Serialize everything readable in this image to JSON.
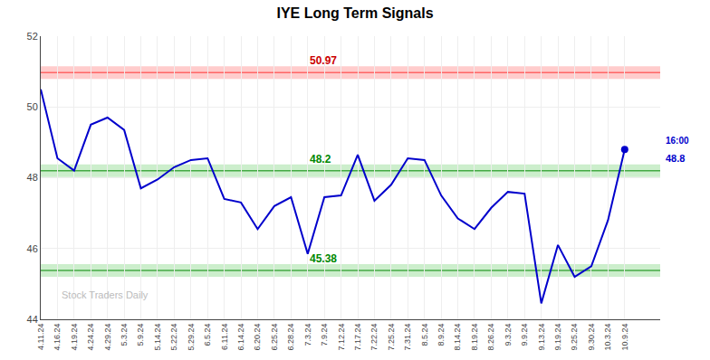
{
  "chart_data": {
    "type": "line",
    "title": "IYE Long Term Signals",
    "categories": [
      "4.11.24",
      "4.16.24",
      "4.19.24",
      "4.24.24",
      "4.29.24",
      "5.3.24",
      "5.9.24",
      "5.14.24",
      "5.22.24",
      "5.29.24",
      "6.5.24",
      "6.11.24",
      "6.14.24",
      "6.20.24",
      "6.25.24",
      "6.28.24",
      "7.3.24",
      "7.9.24",
      "7.12.24",
      "7.17.24",
      "7.22.24",
      "7.25.24",
      "7.31.24",
      "8.5.24",
      "8.9.24",
      "8.14.24",
      "8.19.24",
      "8.26.24",
      "9.3.24",
      "9.9.24",
      "9.13.24",
      "9.19.24",
      "9.25.24",
      "9.30.24",
      "10.3.24",
      "10.9.24"
    ],
    "values": [
      50.5,
      48.55,
      48.2,
      49.5,
      49.7,
      49.35,
      47.7,
      47.95,
      48.3,
      48.5,
      48.55,
      47.4,
      47.3,
      46.55,
      47.2,
      47.45,
      45.85,
      47.45,
      47.5,
      48.65,
      47.35,
      47.8,
      48.55,
      48.5,
      47.5,
      46.85,
      46.55,
      47.15,
      47.6,
      47.55,
      44.45,
      46.1,
      45.2,
      45.5,
      46.8,
      48.8
    ],
    "color": "#0000cc",
    "levels": [
      {
        "value": 50.97,
        "band": [
          50.79,
          51.15
        ],
        "line_color": "#ff6666",
        "fill_color": "#ffcccc",
        "label_color": "#cc0000"
      },
      {
        "value": 48.2,
        "band": [
          48.02,
          48.38
        ],
        "line_color": "#44aa44",
        "fill_color": "#cceecc",
        "label_color": "#008800"
      },
      {
        "value": 45.38,
        "band": [
          45.2,
          45.56
        ],
        "line_color": "#44aa44",
        "fill_color": "#cceecc",
        "label_color": "#008800"
      }
    ],
    "last_point": {
      "label": "16:00",
      "value": 48.8,
      "color": "#0000cc"
    },
    "annotations": [
      {
        "text": "Stock Traders Daily",
        "color": "#bbbbbb"
      }
    ],
    "ylim": [
      44,
      52
    ],
    "yticks": [
      44,
      46,
      48,
      50,
      52
    ],
    "grid": true
  }
}
